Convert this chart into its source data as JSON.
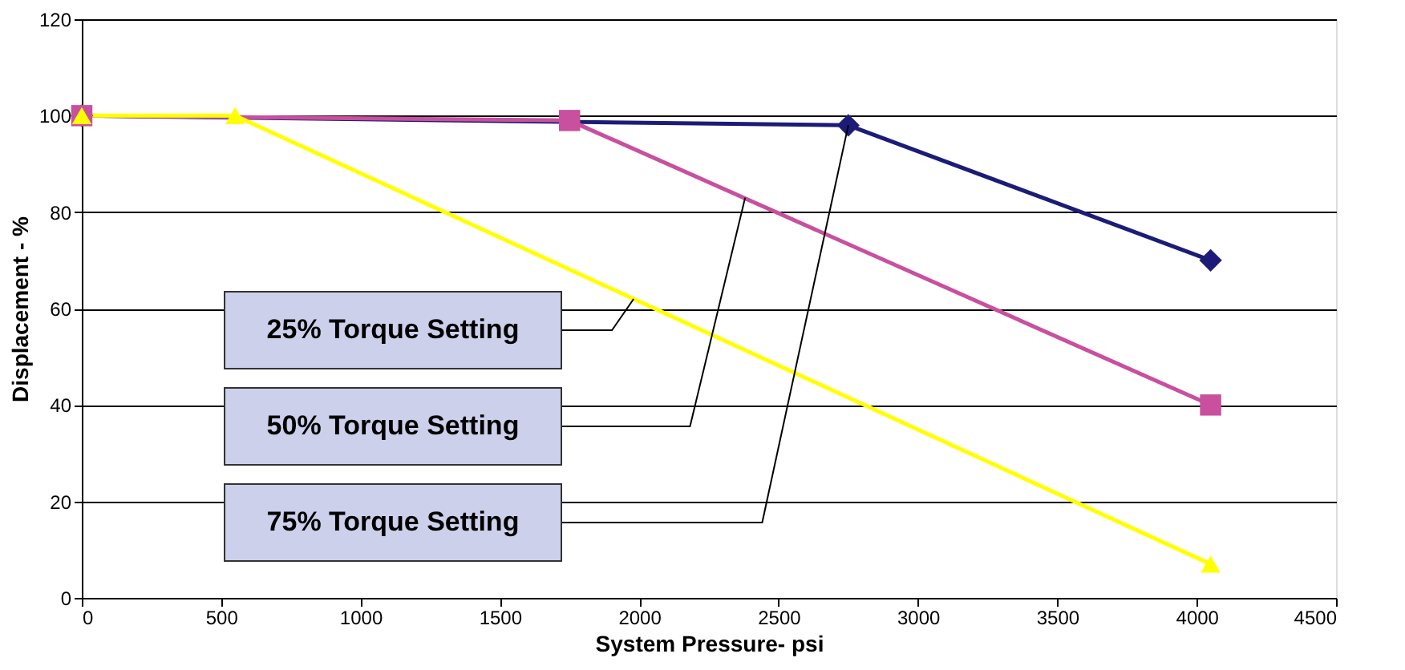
{
  "chart_data": {
    "type": "line",
    "xlabel": "System Pressure- psi",
    "ylabel": "Displacement - %",
    "xlim": [
      0,
      4500
    ],
    "xticks": [
      0,
      500,
      1000,
      1500,
      2000,
      2500,
      3000,
      3500,
      4000,
      4500
    ],
    "ylim": [
      0,
      120
    ],
    "yticks": [
      0,
      20,
      40,
      60,
      80,
      100,
      120
    ],
    "grid": "y",
    "legend": false,
    "line_style": "solid",
    "series": [
      {
        "color": "#1c1c78",
        "marker": "diamond",
        "x": [
          0,
          2750,
          4050
        ],
        "values": [
          100,
          98,
          70
        ]
      },
      {
        "color": "#c8509e",
        "marker": "square",
        "x": [
          0,
          1750,
          4050
        ],
        "values": [
          100,
          99,
          40
        ]
      },
      {
        "color": "#ffff00",
        "marker": "triangle",
        "x": [
          0,
          550,
          4050
        ],
        "values": [
          100,
          100,
          7
        ]
      }
    ],
    "annotations": [
      {
        "text": "25% Torque Setting",
        "x": 1980,
        "y": 62
      },
      {
        "text": "50% Torque Setting",
        "x": 2380,
        "y": 83
      },
      {
        "text": "75% Torque Setting",
        "x": 2750,
        "y": 98
      }
    ]
  }
}
